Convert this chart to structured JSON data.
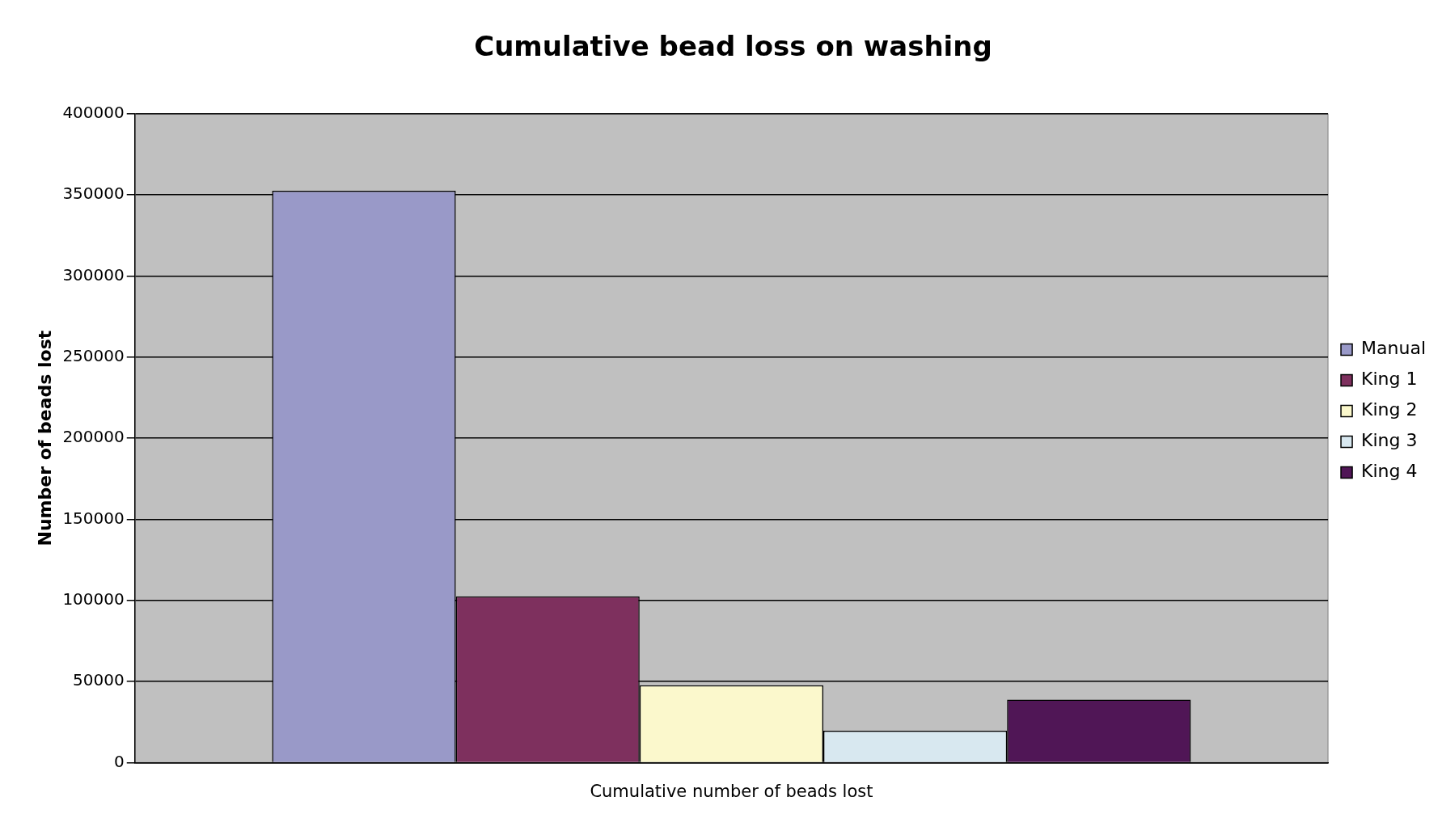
{
  "chart_data": {
    "type": "bar",
    "title": "Cumulative bead loss on washing",
    "xlabel": "Cumulative number of beads lost",
    "ylabel": "Number of beads lost",
    "categories": [
      null
    ],
    "series": [
      {
        "name": "Manual",
        "color": "#9999c8",
        "values": [
          352500
        ]
      },
      {
        "name": "King 1",
        "color": "#7e305e",
        "values": [
          102500
        ]
      },
      {
        "name": "King 2",
        "color": "#fbf8cc",
        "values": [
          47700
        ]
      },
      {
        "name": "King 3",
        "color": "#d8e8f0",
        "values": [
          19600
        ]
      },
      {
        "name": "King 4",
        "color": "#501656",
        "values": [
          38800
        ]
      }
    ],
    "ylim": [
      0,
      400000
    ],
    "yticks": [
      0,
      50000,
      100000,
      150000,
      200000,
      250000,
      300000,
      350000,
      400000
    ],
    "grid": "y",
    "legend": "right"
  }
}
